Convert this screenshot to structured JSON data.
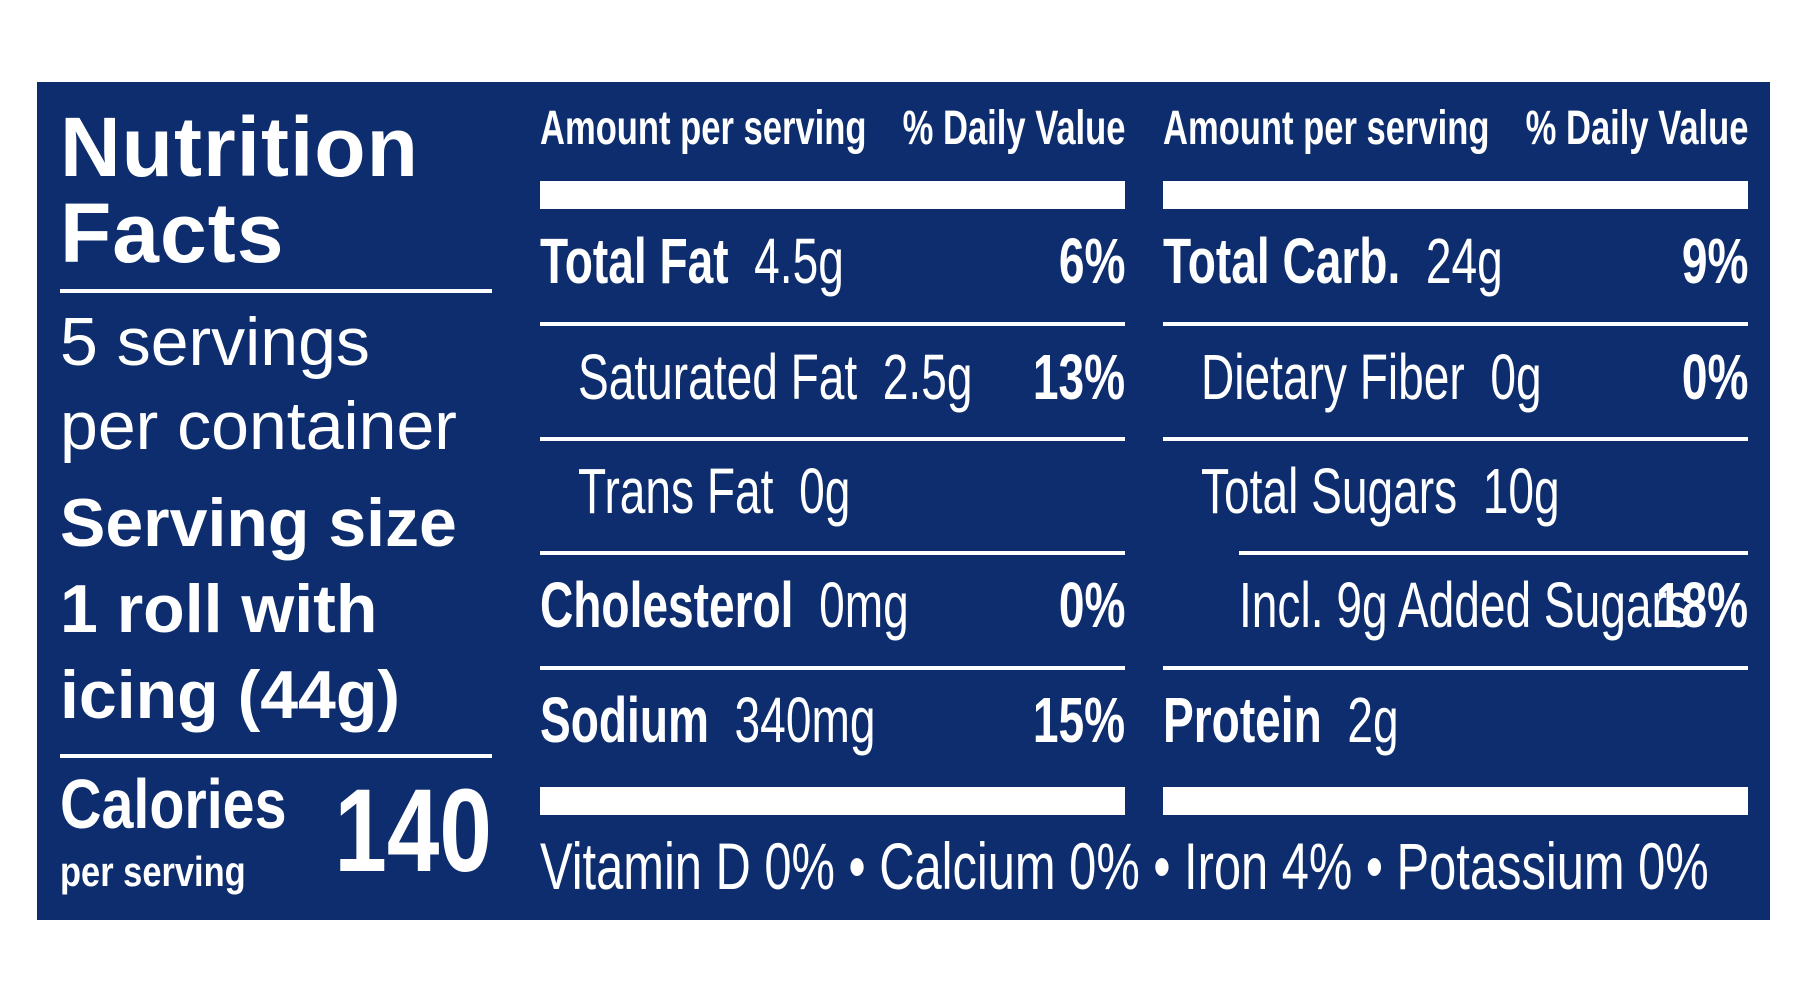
{
  "title_line1": "Nutrition",
  "title_line2": "Facts",
  "servings_line1": "5 servings",
  "servings_line2": "per container",
  "serving_size_line1": "Serving size",
  "serving_size_line2": "1 roll with",
  "serving_size_line3": "icing (44g)",
  "calories_label": "Calories",
  "calories_sub": "per serving",
  "calories_value": "140",
  "left_table": {
    "header_amount": "Amount per serving",
    "header_dv": "% Daily Value",
    "rows": [
      {
        "name": "Total Fat",
        "amount": "4.5g",
        "pct": "6%"
      },
      {
        "name": "Saturated Fat",
        "amount": "2.5g",
        "pct": "13%"
      },
      {
        "name": "Trans Fat",
        "amount": "0g",
        "pct": ""
      },
      {
        "name": "Cholesterol",
        "amount": "0mg",
        "pct": "0%"
      },
      {
        "name": "Sodium",
        "amount": "340mg",
        "pct": "15%"
      }
    ]
  },
  "right_table": {
    "header_amount": "Amount per serving",
    "header_dv": "% Daily Value",
    "rows": [
      {
        "name": "Total Carb.",
        "amount": "24g",
        "pct": "9%"
      },
      {
        "name": "Dietary Fiber",
        "amount": "0g",
        "pct": "0%"
      },
      {
        "name": "Total Sugars",
        "amount": "10g",
        "pct": ""
      },
      {
        "name": "Incl. 9g Added Sugars",
        "amount": "",
        "pct": "18%"
      },
      {
        "name": "Protein",
        "amount": "2g",
        "pct": ""
      }
    ]
  },
  "vitamins": "Vitamin D  0% • Calcium  0% • Iron  4% • Potassium  0%",
  "colors": {
    "panel": "#0e2d6e",
    "text": "#ffffff"
  }
}
